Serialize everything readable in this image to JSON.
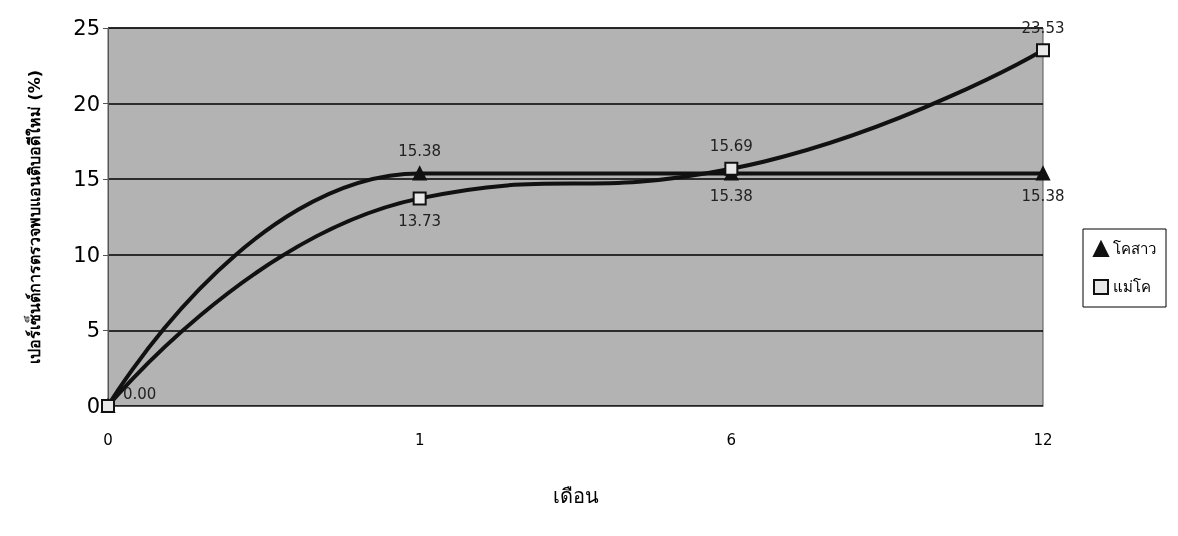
{
  "chart_data": {
    "type": "line",
    "xlabel": "เดือน",
    "ylabel": "เปอร์เซ็นต์การตรวจพบแอนติบอดีใหม่ (%)",
    "categories": [
      "0",
      "1",
      "6",
      "12"
    ],
    "series": [
      {
        "name": "โคสาว",
        "color": "#111111",
        "marker": "triangle",
        "values": [
          0,
          15.38,
          15.38,
          15.38
        ],
        "value_labels": [
          null,
          "15.38",
          "15.38",
          "15.38"
        ]
      },
      {
        "name": "แม่โค",
        "color": "#111111",
        "marker": "square",
        "values": [
          0,
          13.73,
          15.69,
          23.53
        ],
        "value_labels": [
          "0.00",
          "13.73",
          "15.69",
          "23.53"
        ]
      }
    ],
    "ylim": [
      0,
      25
    ],
    "yticks": [
      0,
      5,
      10,
      15,
      20,
      25
    ],
    "grid": "y",
    "legend": "right"
  }
}
